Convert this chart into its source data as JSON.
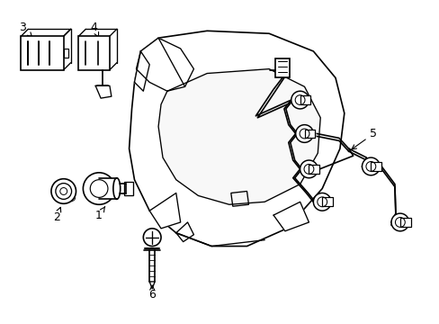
{
  "background_color": "#ffffff",
  "line_color": "#000000",
  "line_width": 1.2,
  "fig_width": 4.89,
  "fig_height": 3.6,
  "dpi": 100
}
